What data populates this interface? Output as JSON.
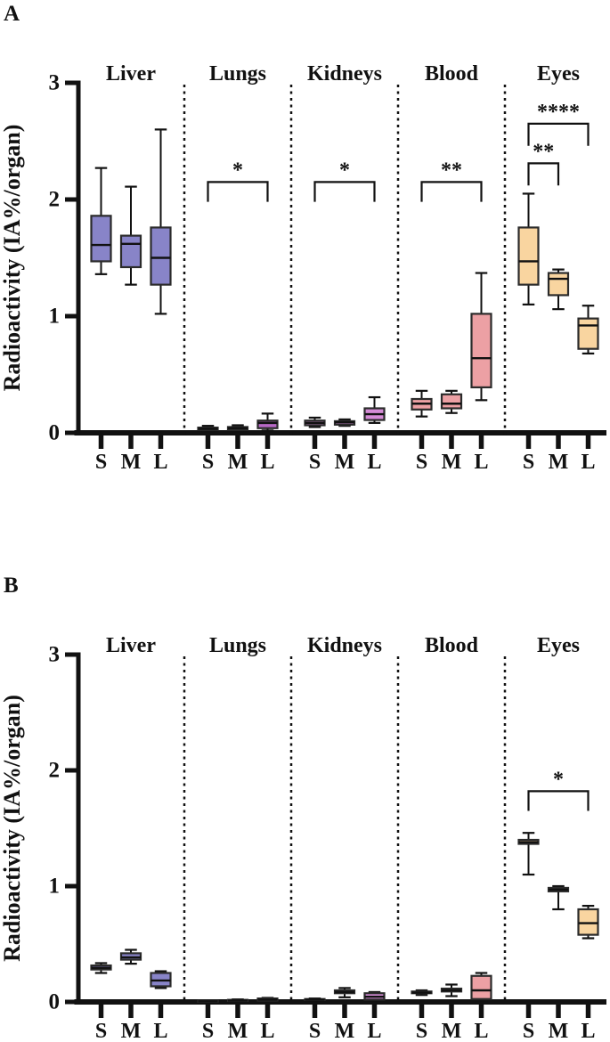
{
  "figure": {
    "panels": [
      {
        "label": "A"
      },
      {
        "label": "B"
      }
    ]
  },
  "colors": {
    "liver": "#8884C8",
    "lungs": "#B768C6",
    "kidneys": "#D48BD6",
    "blood": "#ECA0A4",
    "eyes": "#F9D5A0",
    "axis": "#111111",
    "box_border": "#2B2B2B"
  },
  "chart_data": [
    {
      "type": "box",
      "panel": "A",
      "ylabel": "Radioactivity (IA%/organ)",
      "ylim": [
        0,
        3
      ],
      "yticks": [
        0,
        1,
        2,
        3
      ],
      "x_categories": [
        "S",
        "M",
        "L"
      ],
      "box_stats_order": [
        "whisker_low",
        "q1",
        "median",
        "q3",
        "whisker_high"
      ],
      "series": [
        {
          "organ": "Liver",
          "color": "#8884C8",
          "boxes": {
            "S": [
              1.36,
              1.47,
              1.61,
              1.86,
              2.27
            ],
            "M": [
              1.27,
              1.42,
              1.62,
              1.69,
              2.11
            ],
            "L": [
              1.02,
              1.27,
              1.5,
              1.76,
              2.6
            ]
          }
        },
        {
          "organ": "Lungs",
          "color": "#B768C6",
          "boxes": {
            "S": [
              0.01,
              0.025,
              0.035,
              0.045,
              0.06
            ],
            "M": [
              0.015,
              0.025,
              0.04,
              0.05,
              0.065
            ],
            "L": [
              0.02,
              0.04,
              0.085,
              0.105,
              0.165
            ]
          }
        },
        {
          "organ": "Kidneys",
          "color": "#D48BD6",
          "boxes": {
            "S": [
              0.05,
              0.065,
              0.085,
              0.105,
              0.13
            ],
            "M": [
              0.06,
              0.07,
              0.09,
              0.1,
              0.115
            ],
            "L": [
              0.085,
              0.11,
              0.16,
              0.21,
              0.305
            ]
          }
        },
        {
          "organ": "Blood",
          "color": "#ECA0A4",
          "boxes": {
            "S": [
              0.14,
              0.2,
              0.25,
              0.29,
              0.36
            ],
            "M": [
              0.17,
              0.21,
              0.25,
              0.33,
              0.36
            ],
            "L": [
              0.28,
              0.39,
              0.64,
              1.02,
              1.37
            ]
          }
        },
        {
          "organ": "Eyes",
          "color": "#F9D5A0",
          "boxes": {
            "S": [
              1.1,
              1.27,
              1.47,
              1.76,
              2.05
            ],
            "M": [
              1.06,
              1.18,
              1.32,
              1.37,
              1.4
            ],
            "L": [
              0.68,
              0.72,
              0.92,
              0.98,
              1.09
            ]
          }
        }
      ],
      "significance": [
        {
          "organ": "Lungs",
          "from": "S",
          "to": "L",
          "label": "*",
          "y": 2.15,
          "drop": 0.17
        },
        {
          "organ": "Kidneys",
          "from": "S",
          "to": "L",
          "label": "*",
          "y": 2.15,
          "drop": 0.17
        },
        {
          "organ": "Blood",
          "from": "S",
          "to": "L",
          "label": "**",
          "y": 2.15,
          "drop": 0.17
        },
        {
          "organ": "Eyes",
          "from": "S",
          "to": "M",
          "label": "**",
          "y": 2.31,
          "drop": 0.19
        },
        {
          "organ": "Eyes",
          "from": "S",
          "to": "L",
          "label": "****",
          "y": 2.65,
          "drop": 0.19
        }
      ]
    },
    {
      "type": "box",
      "panel": "B",
      "ylabel": "Radioactivity (IA%/organ)",
      "ylim": [
        0,
        3
      ],
      "yticks": [
        0,
        1,
        2,
        3
      ],
      "x_categories": [
        "S",
        "M",
        "L"
      ],
      "box_stats_order": [
        "whisker_low",
        "q1",
        "median",
        "q3",
        "whisker_high"
      ],
      "series": [
        {
          "organ": "Liver",
          "color": "#8884C8",
          "boxes": {
            "S": [
              0.25,
              0.28,
              0.295,
              0.315,
              0.335
            ],
            "M": [
              0.33,
              0.365,
              0.385,
              0.42,
              0.45
            ],
            "L": [
              0.12,
              0.135,
              0.185,
              0.25,
              0.265
            ]
          }
        },
        {
          "organ": "Lungs",
          "color": "#B768C6",
          "boxes": {
            "S": [
              0.0,
              0.002,
              0.005,
              0.01,
              0.012
            ],
            "M": [
              0.005,
              0.008,
              0.012,
              0.018,
              0.022
            ],
            "L": [
              0.008,
              0.012,
              0.02,
              0.03,
              0.035
            ]
          }
        },
        {
          "organ": "Kidneys",
          "color": "#D48BD6",
          "boxes": {
            "S": [
              0.012,
              0.016,
              0.02,
              0.025,
              0.03
            ],
            "M": [
              0.04,
              0.075,
              0.085,
              0.1,
              0.12
            ],
            "L": [
              0.01,
              0.02,
              0.045,
              0.075,
              0.085
            ]
          }
        },
        {
          "organ": "Blood",
          "color": "#ECA0A4",
          "boxes": {
            "S": [
              0.06,
              0.075,
              0.08,
              0.09,
              0.1
            ],
            "M": [
              0.05,
              0.09,
              0.1,
              0.115,
              0.15
            ],
            "L": [
              0.01,
              0.025,
              0.1,
              0.225,
              0.25
            ]
          }
        },
        {
          "organ": "Eyes",
          "color": "#F9D5A0",
          "boxes": {
            "S": [
              1.1,
              1.365,
              1.38,
              1.4,
              1.46
            ],
            "M": [
              0.8,
              0.955,
              0.97,
              0.985,
              1.0
            ],
            "L": [
              0.55,
              0.58,
              0.68,
              0.8,
              0.83
            ]
          }
        }
      ],
      "significance": [
        {
          "organ": "Eyes",
          "from": "S",
          "to": "L",
          "label": "*",
          "y": 1.82,
          "drop": 0.17
        }
      ]
    }
  ]
}
